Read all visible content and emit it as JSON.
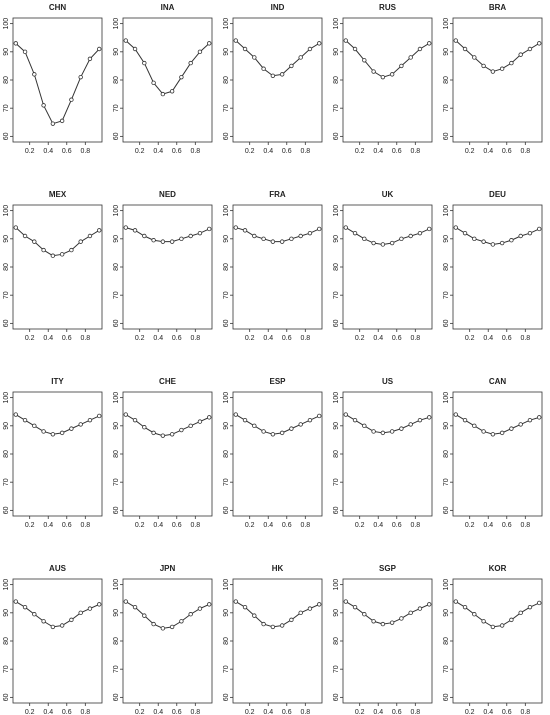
{
  "chart_data": [
    {
      "type": "line",
      "title": "CHN",
      "x": [
        0.05,
        0.15,
        0.25,
        0.35,
        0.45,
        0.55,
        0.65,
        0.75,
        0.85,
        0.95
      ],
      "values": [
        93,
        90,
        82,
        71,
        64.5,
        65.5,
        73,
        81,
        87.5,
        91
      ],
      "color": "#333333",
      "xlim": [
        0.02,
        0.98
      ],
      "ylim": [
        58,
        102
      ],
      "xticks": [
        0.2,
        0.4,
        0.6,
        0.8
      ],
      "yticks": [
        60,
        70,
        80,
        90,
        100
      ]
    },
    {
      "type": "line",
      "title": "INA",
      "x": [
        0.05,
        0.15,
        0.25,
        0.35,
        0.45,
        0.55,
        0.65,
        0.75,
        0.85,
        0.95
      ],
      "values": [
        94,
        91,
        86,
        79,
        75,
        76,
        81,
        86,
        90,
        93
      ],
      "color": "#333333",
      "xlim": [
        0.02,
        0.98
      ],
      "ylim": [
        58,
        102
      ],
      "xticks": [
        0.2,
        0.4,
        0.6,
        0.8
      ],
      "yticks": [
        60,
        70,
        80,
        90,
        100
      ]
    },
    {
      "type": "line",
      "title": "IND",
      "x": [
        0.05,
        0.15,
        0.25,
        0.35,
        0.45,
        0.55,
        0.65,
        0.75,
        0.85,
        0.95
      ],
      "values": [
        94,
        91,
        88,
        84,
        81.5,
        82,
        85,
        88,
        91,
        93
      ],
      "color": "#333333",
      "xlim": [
        0.02,
        0.98
      ],
      "ylim": [
        58,
        102
      ],
      "xticks": [
        0.2,
        0.4,
        0.6,
        0.8
      ],
      "yticks": [
        60,
        70,
        80,
        90,
        100
      ]
    },
    {
      "type": "line",
      "title": "RUS",
      "x": [
        0.05,
        0.15,
        0.25,
        0.35,
        0.45,
        0.55,
        0.65,
        0.75,
        0.85,
        0.95
      ],
      "values": [
        94,
        91,
        87,
        83,
        81,
        82,
        85,
        88,
        91,
        93
      ],
      "color": "#333333",
      "xlim": [
        0.02,
        0.98
      ],
      "ylim": [
        58,
        102
      ],
      "xticks": [
        0.2,
        0.4,
        0.6,
        0.8
      ],
      "yticks": [
        60,
        70,
        80,
        90,
        100
      ]
    },
    {
      "type": "line",
      "title": "BRA",
      "x": [
        0.05,
        0.15,
        0.25,
        0.35,
        0.45,
        0.55,
        0.65,
        0.75,
        0.85,
        0.95
      ],
      "values": [
        94,
        91,
        88,
        85,
        83,
        84,
        86,
        89,
        91,
        93
      ],
      "color": "#333333",
      "xlim": [
        0.02,
        0.98
      ],
      "ylim": [
        58,
        102
      ],
      "xticks": [
        0.2,
        0.4,
        0.6,
        0.8
      ],
      "yticks": [
        60,
        70,
        80,
        90,
        100
      ]
    },
    {
      "type": "line",
      "title": "MEX",
      "x": [
        0.05,
        0.15,
        0.25,
        0.35,
        0.45,
        0.55,
        0.65,
        0.75,
        0.85,
        0.95
      ],
      "values": [
        94,
        91,
        89,
        86,
        84,
        84.5,
        86,
        89,
        91,
        93
      ],
      "color": "#333333",
      "xlim": [
        0.02,
        0.98
      ],
      "ylim": [
        58,
        102
      ],
      "xticks": [
        0.2,
        0.4,
        0.6,
        0.8
      ],
      "yticks": [
        60,
        70,
        80,
        90,
        100
      ]
    },
    {
      "type": "line",
      "title": "NED",
      "x": [
        0.05,
        0.15,
        0.25,
        0.35,
        0.45,
        0.55,
        0.65,
        0.75,
        0.85,
        0.95
      ],
      "values": [
        94,
        93,
        91,
        89.5,
        89,
        89,
        90,
        91,
        92,
        93.5
      ],
      "color": "#333333",
      "xlim": [
        0.02,
        0.98
      ],
      "ylim": [
        58,
        102
      ],
      "xticks": [
        0.2,
        0.4,
        0.6,
        0.8
      ],
      "yticks": [
        60,
        70,
        80,
        90,
        100
      ]
    },
    {
      "type": "line",
      "title": "FRA",
      "x": [
        0.05,
        0.15,
        0.25,
        0.35,
        0.45,
        0.55,
        0.65,
        0.75,
        0.85,
        0.95
      ],
      "values": [
        94,
        93,
        91,
        90,
        89,
        89,
        90,
        91,
        92,
        93.5
      ],
      "color": "#333333",
      "xlim": [
        0.02,
        0.98
      ],
      "ylim": [
        58,
        102
      ],
      "xticks": [
        0.2,
        0.4,
        0.6,
        0.8
      ],
      "yticks": [
        60,
        70,
        80,
        90,
        100
      ]
    },
    {
      "type": "line",
      "title": "UK",
      "x": [
        0.05,
        0.15,
        0.25,
        0.35,
        0.45,
        0.55,
        0.65,
        0.75,
        0.85,
        0.95
      ],
      "values": [
        94,
        92,
        90,
        88.5,
        88,
        88.5,
        90,
        91,
        92,
        93.5
      ],
      "color": "#333333",
      "xlim": [
        0.02,
        0.98
      ],
      "ylim": [
        58,
        102
      ],
      "xticks": [
        0.2,
        0.4,
        0.6,
        0.8
      ],
      "yticks": [
        60,
        70,
        80,
        90,
        100
      ]
    },
    {
      "type": "line",
      "title": "DEU",
      "x": [
        0.05,
        0.15,
        0.25,
        0.35,
        0.45,
        0.55,
        0.65,
        0.75,
        0.85,
        0.95
      ],
      "values": [
        94,
        92,
        90,
        89,
        88,
        88.5,
        89.5,
        91,
        92,
        93.5
      ],
      "color": "#333333",
      "xlim": [
        0.02,
        0.98
      ],
      "ylim": [
        58,
        102
      ],
      "xticks": [
        0.2,
        0.4,
        0.6,
        0.8
      ],
      "yticks": [
        60,
        70,
        80,
        90,
        100
      ]
    },
    {
      "type": "line",
      "title": "ITY",
      "x": [
        0.05,
        0.15,
        0.25,
        0.35,
        0.45,
        0.55,
        0.65,
        0.75,
        0.85,
        0.95
      ],
      "values": [
        94,
        92,
        90,
        88,
        87,
        87.5,
        89,
        90.5,
        92,
        93.5
      ],
      "color": "#333333",
      "xlim": [
        0.02,
        0.98
      ],
      "ylim": [
        58,
        102
      ],
      "xticks": [
        0.2,
        0.4,
        0.6,
        0.8
      ],
      "yticks": [
        60,
        70,
        80,
        90,
        100
      ]
    },
    {
      "type": "line",
      "title": "CHE",
      "x": [
        0.05,
        0.15,
        0.25,
        0.35,
        0.45,
        0.55,
        0.65,
        0.75,
        0.85,
        0.95
      ],
      "values": [
        94,
        92,
        89.5,
        87.5,
        86.5,
        87,
        88.5,
        90,
        91.5,
        93
      ],
      "color": "#333333",
      "xlim": [
        0.02,
        0.98
      ],
      "ylim": [
        58,
        102
      ],
      "xticks": [
        0.2,
        0.4,
        0.6,
        0.8
      ],
      "yticks": [
        60,
        70,
        80,
        90,
        100
      ]
    },
    {
      "type": "line",
      "title": "ESP",
      "x": [
        0.05,
        0.15,
        0.25,
        0.35,
        0.45,
        0.55,
        0.65,
        0.75,
        0.85,
        0.95
      ],
      "values": [
        94,
        92,
        90,
        88,
        87,
        87.5,
        89,
        90.5,
        92,
        93.5
      ],
      "color": "#333333",
      "xlim": [
        0.02,
        0.98
      ],
      "ylim": [
        58,
        102
      ],
      "xticks": [
        0.2,
        0.4,
        0.6,
        0.8
      ],
      "yticks": [
        60,
        70,
        80,
        90,
        100
      ]
    },
    {
      "type": "line",
      "title": "US",
      "x": [
        0.05,
        0.15,
        0.25,
        0.35,
        0.45,
        0.55,
        0.65,
        0.75,
        0.85,
        0.95
      ],
      "values": [
        94,
        92,
        90,
        88,
        87.5,
        88,
        89,
        90.5,
        92,
        93
      ],
      "color": "#333333",
      "xlim": [
        0.02,
        0.98
      ],
      "ylim": [
        58,
        102
      ],
      "xticks": [
        0.2,
        0.4,
        0.6,
        0.8
      ],
      "yticks": [
        60,
        70,
        80,
        90,
        100
      ]
    },
    {
      "type": "line",
      "title": "CAN",
      "x": [
        0.05,
        0.15,
        0.25,
        0.35,
        0.45,
        0.55,
        0.65,
        0.75,
        0.85,
        0.95
      ],
      "values": [
        94,
        92,
        90,
        88,
        87,
        87.5,
        89,
        90.5,
        92,
        93
      ],
      "color": "#333333",
      "xlim": [
        0.02,
        0.98
      ],
      "ylim": [
        58,
        102
      ],
      "xticks": [
        0.2,
        0.4,
        0.6,
        0.8
      ],
      "yticks": [
        60,
        70,
        80,
        90,
        100
      ]
    },
    {
      "type": "line",
      "title": "AUS",
      "x": [
        0.05,
        0.15,
        0.25,
        0.35,
        0.45,
        0.55,
        0.65,
        0.75,
        0.85,
        0.95
      ],
      "values": [
        94,
        92,
        89.5,
        87,
        85,
        85.5,
        87.5,
        90,
        91.5,
        93
      ],
      "color": "#333333",
      "xlim": [
        0.02,
        0.98
      ],
      "ylim": [
        58,
        102
      ],
      "xticks": [
        0.2,
        0.4,
        0.6,
        0.8
      ],
      "yticks": [
        60,
        70,
        80,
        90,
        100
      ]
    },
    {
      "type": "line",
      "title": "JPN",
      "x": [
        0.05,
        0.15,
        0.25,
        0.35,
        0.45,
        0.55,
        0.65,
        0.75,
        0.85,
        0.95
      ],
      "values": [
        94,
        92,
        89,
        86,
        84.5,
        85,
        87,
        89.5,
        91.5,
        93
      ],
      "color": "#333333",
      "xlim": [
        0.02,
        0.98
      ],
      "ylim": [
        58,
        102
      ],
      "xticks": [
        0.2,
        0.4,
        0.6,
        0.8
      ],
      "yticks": [
        60,
        70,
        80,
        90,
        100
      ]
    },
    {
      "type": "line",
      "title": "HK",
      "x": [
        0.05,
        0.15,
        0.25,
        0.35,
        0.45,
        0.55,
        0.65,
        0.75,
        0.85,
        0.95
      ],
      "values": [
        94,
        92,
        89,
        86,
        85,
        85.5,
        87.5,
        90,
        91.5,
        93
      ],
      "color": "#333333",
      "xlim": [
        0.02,
        0.98
      ],
      "ylim": [
        58,
        102
      ],
      "xticks": [
        0.2,
        0.4,
        0.6,
        0.8
      ],
      "yticks": [
        60,
        70,
        80,
        90,
        100
      ]
    },
    {
      "type": "line",
      "title": "SGP",
      "x": [
        0.05,
        0.15,
        0.25,
        0.35,
        0.45,
        0.55,
        0.65,
        0.75,
        0.85,
        0.95
      ],
      "values": [
        94,
        92,
        89.5,
        87,
        86,
        86.5,
        88,
        90,
        91.5,
        93
      ],
      "color": "#333333",
      "xlim": [
        0.02,
        0.98
      ],
      "ylim": [
        58,
        102
      ],
      "xticks": [
        0.2,
        0.4,
        0.6,
        0.8
      ],
      "yticks": [
        60,
        70,
        80,
        90,
        100
      ]
    },
    {
      "type": "line",
      "title": "KOR",
      "x": [
        0.05,
        0.15,
        0.25,
        0.35,
        0.45,
        0.55,
        0.65,
        0.75,
        0.85,
        0.95
      ],
      "values": [
        94,
        92,
        89.5,
        87,
        85,
        85.5,
        87.5,
        90,
        92,
        93.5
      ],
      "color": "#333333",
      "xlim": [
        0.02,
        0.98
      ],
      "ylim": [
        58,
        102
      ],
      "xticks": [
        0.2,
        0.4,
        0.6,
        0.8
      ],
      "yticks": [
        60,
        70,
        80,
        90,
        100
      ]
    }
  ]
}
